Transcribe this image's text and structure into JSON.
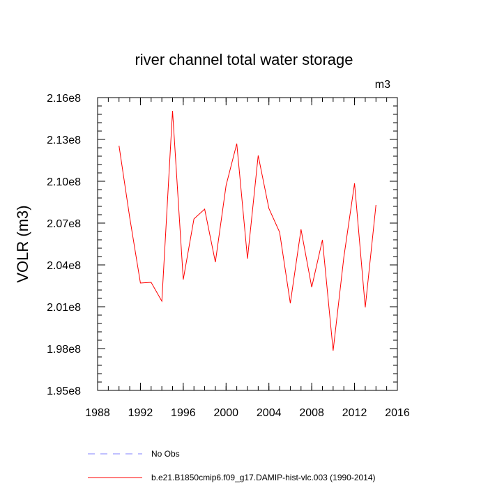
{
  "chart_data": {
    "type": "line",
    "title": "river channel total water storage",
    "units_label": "m3",
    "ylabel": "VOLR  (m3)",
    "xlabel": "",
    "xlim": [
      1988,
      2016
    ],
    "ylim": [
      195000000,
      216000000
    ],
    "x_ticks": [
      {
        "value": 1988,
        "label": "1988"
      },
      {
        "value": 1992,
        "label": "1992"
      },
      {
        "value": 1996,
        "label": "1996"
      },
      {
        "value": 2000,
        "label": "2000"
      },
      {
        "value": 2004,
        "label": "2004"
      },
      {
        "value": 2008,
        "label": "2008"
      },
      {
        "value": 2012,
        "label": "2012"
      },
      {
        "value": 2016,
        "label": "2016"
      }
    ],
    "y_ticks": [
      {
        "value": 195000000,
        "label": "1.95e8"
      },
      {
        "value": 198000000,
        "label": "1.98e8"
      },
      {
        "value": 201000000,
        "label": "2.01e8"
      },
      {
        "value": 204000000,
        "label": "2.04e8"
      },
      {
        "value": 207000000,
        "label": "2.07e8"
      },
      {
        "value": 210000000,
        "label": "2.10e8"
      },
      {
        "value": 213000000,
        "label": "2.13e8"
      },
      {
        "value": 216000000,
        "label": "2.16e8"
      }
    ],
    "x_minor_step": 1,
    "y_minor_step": 600000,
    "grid": false,
    "legend_position": "bottom",
    "series": [
      {
        "name": "No Obs",
        "color": "#8080ff",
        "dash": true,
        "x": [],
        "y": []
      },
      {
        "name": "b.e21.B1850cmip6.f09_g17.DAMIP-hist-vlc.003 (1990-2014)",
        "color": "#ff0000",
        "dash": false,
        "x": [
          1990,
          1991,
          1992,
          1993,
          1994,
          1995,
          1996,
          1997,
          1998,
          1999,
          2000,
          2001,
          2002,
          2003,
          2004,
          2005,
          2006,
          2007,
          2008,
          2009,
          2010,
          2011,
          2012,
          2013,
          2014
        ],
        "y": [
          212550000,
          207400000,
          202700000,
          202750000,
          201400000,
          215050000,
          202950000,
          207300000,
          208000000,
          204200000,
          209700000,
          212700000,
          204450000,
          211850000,
          208050000,
          206350000,
          201250000,
          206550000,
          202400000,
          205800000,
          197850000,
          204550000,
          209850000,
          200950000,
          208300000
        ]
      }
    ]
  }
}
